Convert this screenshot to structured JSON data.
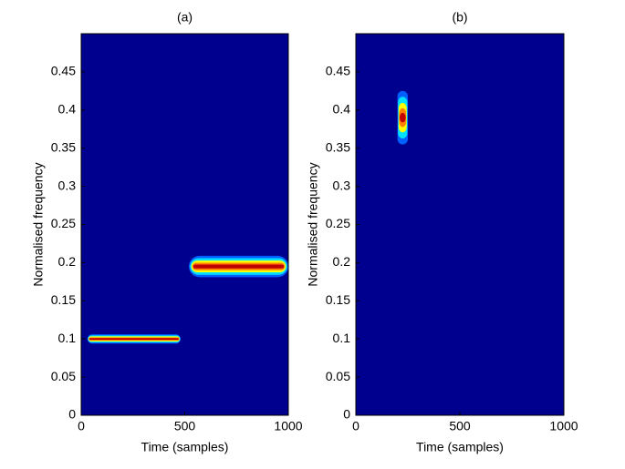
{
  "chart_data": [
    {
      "type": "heatmap",
      "title": "(a)",
      "xlabel": "Time (samples)",
      "ylabel": "Normalised frequency",
      "background": "#00008f",
      "colormap": [
        "#0060ff",
        "#00e0ff",
        "#ffff00",
        "#ff8000",
        "#c00000"
      ],
      "ridges": [
        {
          "x": [
            30,
            480
          ],
          "y": 0.1,
          "height": 0.012
        },
        {
          "x": [
            520,
            1000
          ],
          "y": 0.195,
          "height": 0.028
        }
      ],
      "xlim": [
        0,
        1000
      ],
      "xticks": [
        0,
        500,
        1000
      ],
      "ylim": [
        0,
        0.5
      ],
      "yticks": [
        0,
        0.05,
        0.1,
        0.15,
        0.2,
        0.25,
        0.3,
        0.35,
        0.4,
        0.45
      ]
    },
    {
      "type": "heatmap",
      "title": "(b)",
      "xlabel": "Time (samples)",
      "ylabel": "Normalised frequency",
      "background": "#00008f",
      "colormap": [
        "#0060ff",
        "#00e0ff",
        "#ffff00",
        "#ff8000",
        "#c00000"
      ],
      "ridges": [
        {
          "x": [
            200,
            250
          ],
          "y": 0.39,
          "height": 0.07
        }
      ],
      "xlim": [
        0,
        1000
      ],
      "xticks": [
        0,
        500,
        1000
      ],
      "ylim": [
        0,
        0.5
      ],
      "yticks": [
        0,
        0.05,
        0.1,
        0.15,
        0.2,
        0.25,
        0.3,
        0.35,
        0.4,
        0.45
      ]
    }
  ]
}
